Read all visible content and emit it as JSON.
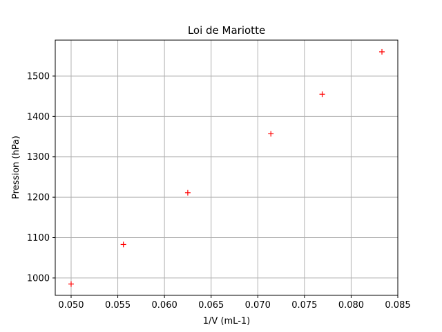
{
  "chart_data": {
    "type": "scatter",
    "title": "Loi de Mariotte",
    "xlabel": "1/V (mL-1)",
    "ylabel": "Pression (hPa)",
    "xlim": [
      0.0483,
      0.085
    ],
    "ylim": [
      957,
      1589
    ],
    "x_ticks": [
      0.05,
      0.055,
      0.06,
      0.065,
      0.07,
      0.075,
      0.08,
      0.085
    ],
    "x_tick_labels": [
      "0.050",
      "0.055",
      "0.060",
      "0.065",
      "0.070",
      "0.075",
      "0.080",
      "0.085"
    ],
    "y_ticks": [
      1000,
      1100,
      1200,
      1300,
      1400,
      1500
    ],
    "y_tick_labels": [
      "1000",
      "1100",
      "1200",
      "1300",
      "1400",
      "1500"
    ],
    "grid": true,
    "legend": "none",
    "marker": "plus",
    "marker_color": "#ff0000",
    "grid_color": "#b0b0b0",
    "series": [
      {
        "x": [
          0.05,
          0.0556,
          0.0625,
          0.0714,
          0.0769,
          0.0833
        ],
        "y": [
          985,
          1083,
          1211,
          1357,
          1455,
          1560
        ]
      }
    ]
  }
}
